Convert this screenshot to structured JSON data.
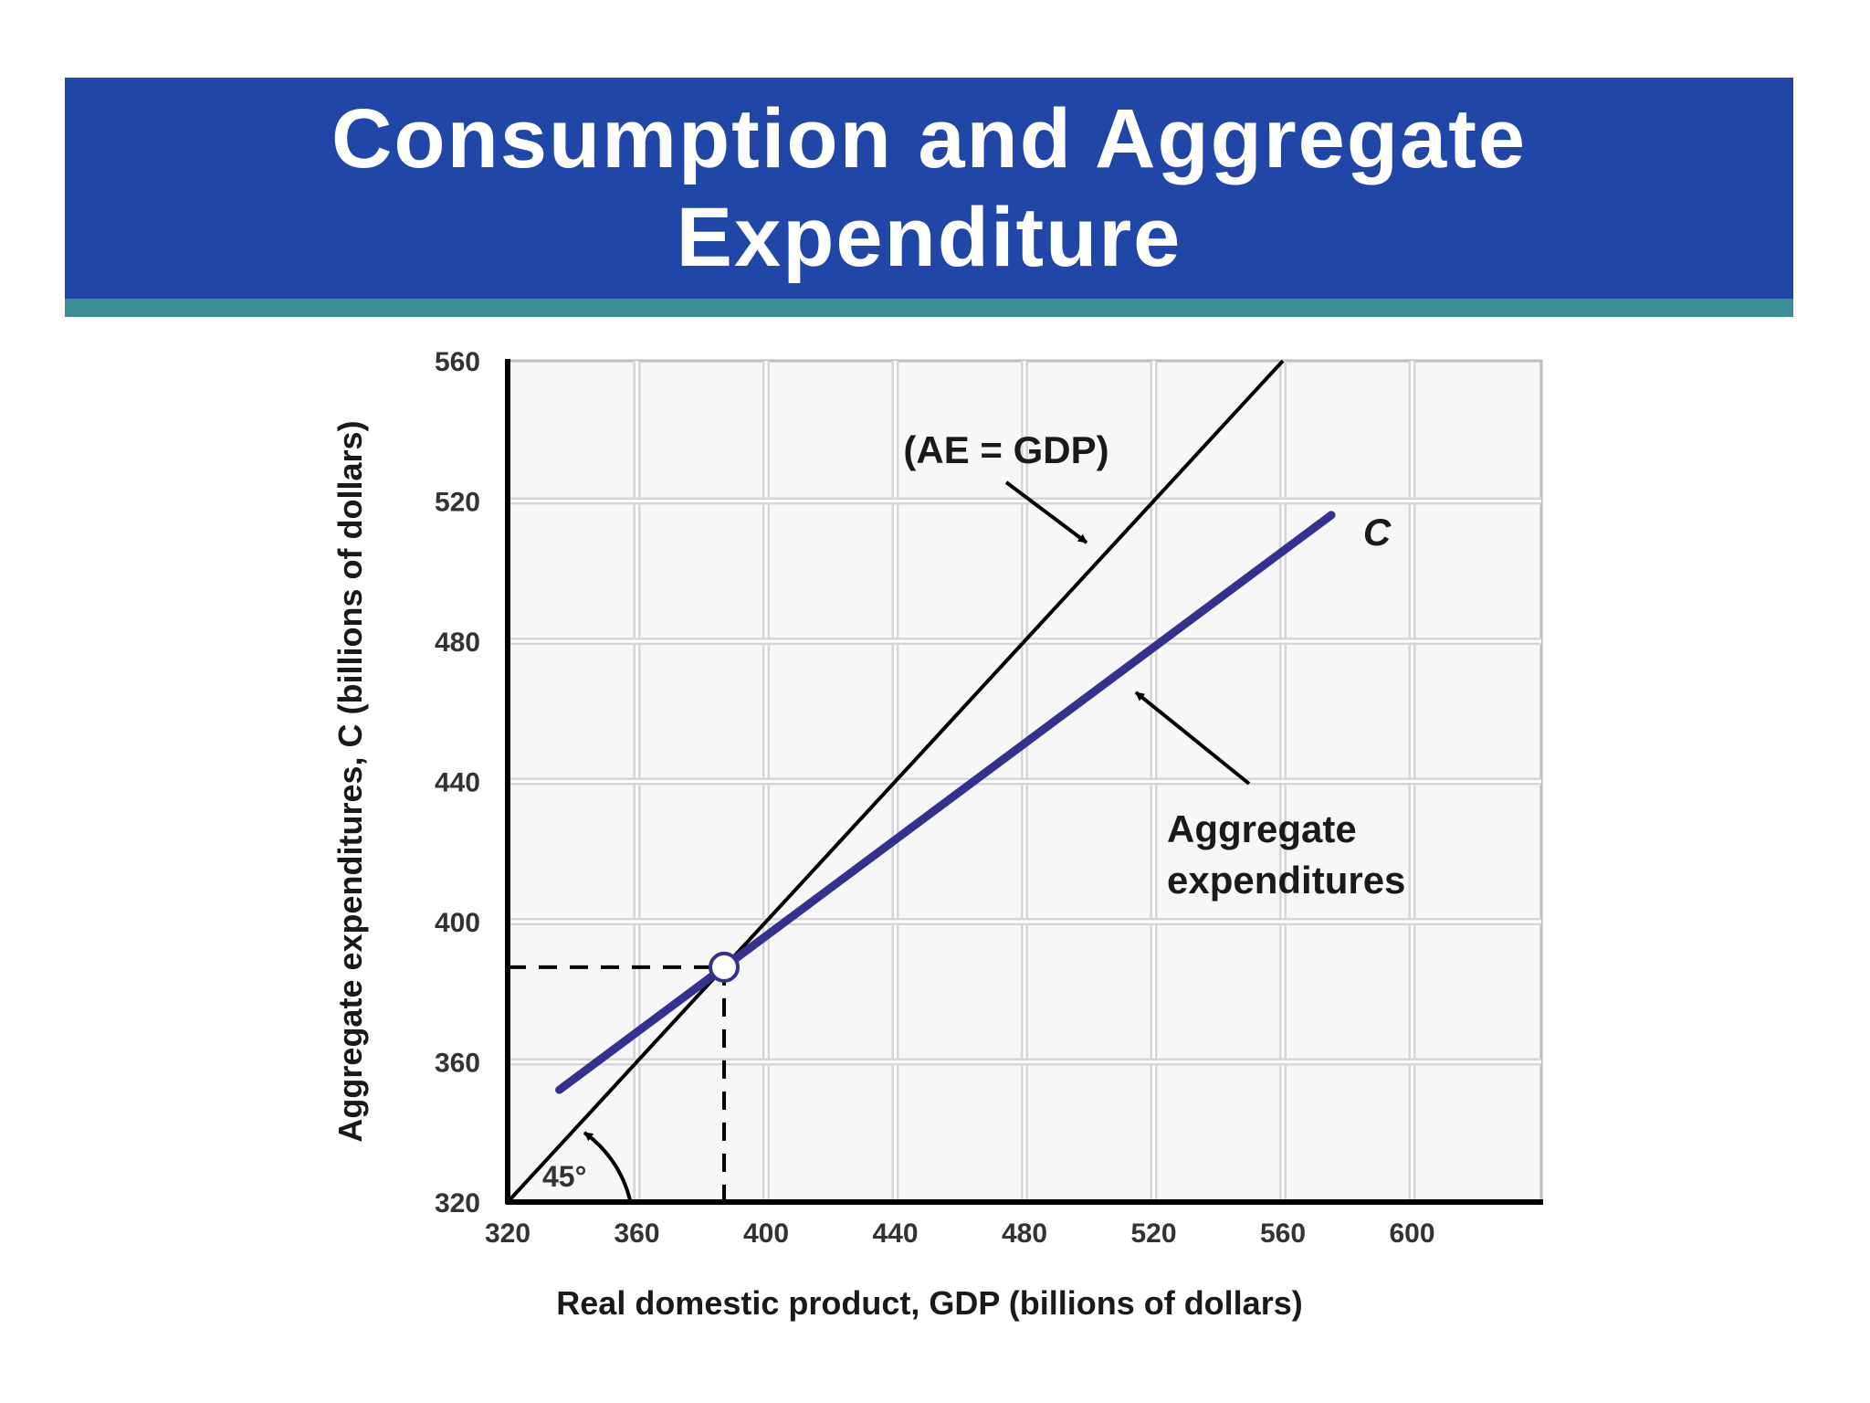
{
  "header": {
    "title_line1": "Consumption and Aggregate",
    "title_line2": "Expenditure"
  },
  "colors": {
    "title_background": "#2047a7",
    "accent_strip": "#3e8e96",
    "consumption_line": "#34318f",
    "reference_line": "#000000",
    "grid": "#d6d6d6"
  },
  "chart_data": {
    "type": "line",
    "xlabel": "Real domestic product, GDP (billions of dollars)",
    "ylabel": "Aggregate expenditures, C (billions of dollars)",
    "xlim": [
      320,
      640
    ],
    "ylim": [
      320,
      560
    ],
    "x_ticks": [
      320,
      360,
      400,
      440,
      480,
      520,
      560,
      600
    ],
    "y_ticks": [
      320,
      360,
      400,
      440,
      480,
      520,
      560
    ],
    "grid": true,
    "series": [
      {
        "name": "(AE = GDP)",
        "x": [
          320,
          560
        ],
        "y": [
          320,
          560
        ],
        "color": "#000000"
      },
      {
        "name": "C",
        "x": [
          336,
          575
        ],
        "y": [
          352,
          516
        ],
        "color": "#34318f"
      }
    ],
    "equilibrium": {
      "x": 387,
      "y": 387
    },
    "annotations": {
      "ae_label": "(AE = GDP)",
      "c_label": "C",
      "ae_line1": "Aggregate",
      "ae_line2": "expenditures",
      "angle": "45°"
    }
  }
}
